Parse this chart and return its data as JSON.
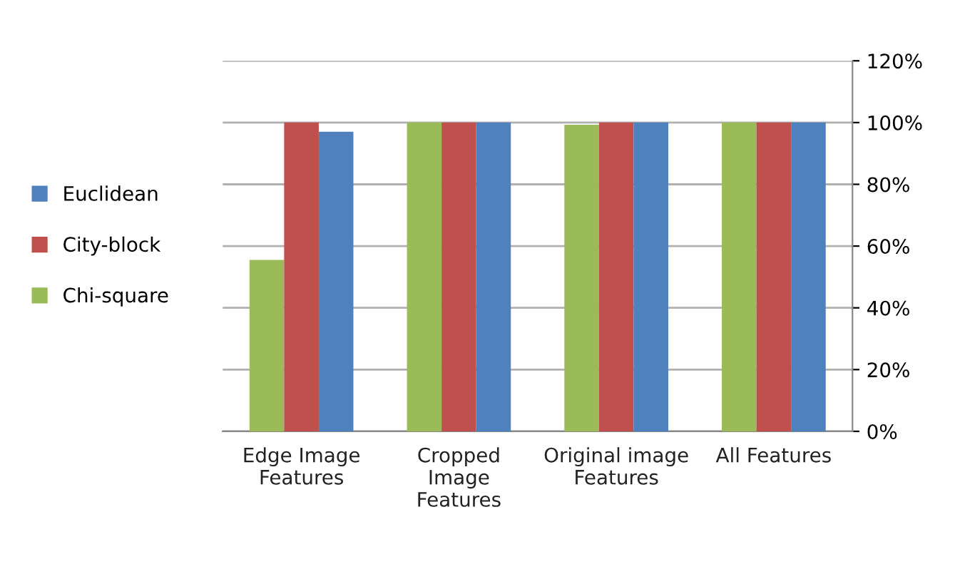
{
  "chart_data": {
    "type": "bar",
    "categories": [
      "Edge Image\nFeatures",
      "Cropped\nImage\nFeatures",
      "Original image\nFeatures",
      "All Features"
    ],
    "series": [
      {
        "name": "Chi-square",
        "color": "#9bbb59",
        "values": [
          55.5,
          100,
          99.3,
          100
        ]
      },
      {
        "name": "City-block",
        "color": "#c0504d",
        "values": [
          100,
          100,
          100,
          100
        ]
      },
      {
        "name": "Euclidean",
        "color": "#4f81bd",
        "values": [
          97,
          100,
          100,
          100
        ]
      }
    ],
    "ylim": [
      0,
      120
    ],
    "yticks": [
      {
        "value": 0,
        "label": "0%"
      },
      {
        "value": 20,
        "label": "20%"
      },
      {
        "value": 40,
        "label": "40%"
      },
      {
        "value": 60,
        "label": "60%"
      },
      {
        "value": 80,
        "label": "80%"
      },
      {
        "value": 100,
        "label": "100%"
      },
      {
        "value": 120,
        "label": "120%"
      }
    ],
    "grid": "y",
    "legend": "left"
  }
}
